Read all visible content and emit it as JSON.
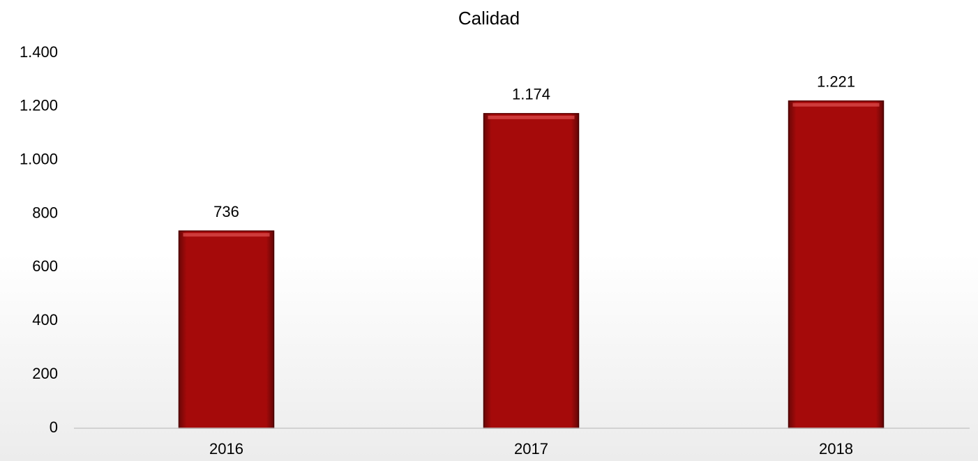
{
  "chart_data": {
    "type": "bar",
    "title": "Calidad",
    "categories": [
      "2016",
      "2017",
      "2018"
    ],
    "values": [
      736,
      1174,
      1221
    ],
    "value_labels": [
      "736",
      "1.174",
      "1.221"
    ],
    "color": "#a50a0a",
    "ylim": [
      0,
      1400
    ],
    "yticks": [
      0,
      200,
      400,
      600,
      800,
      {
        "value": 1000,
        "label": "1.000"
      },
      {
        "value": 1200,
        "label": "1.200"
      },
      {
        "value": 1400,
        "label": "1.400"
      }
    ],
    "grid": false
  }
}
